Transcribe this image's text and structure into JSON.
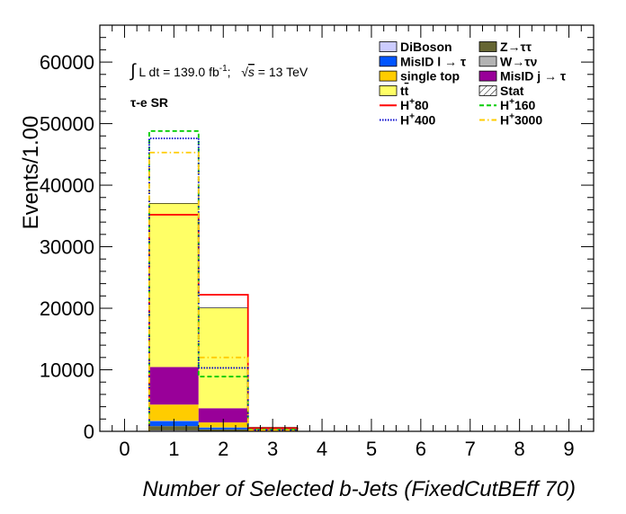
{
  "chart_data": {
    "type": "bar",
    "stacked": true,
    "x_categories": [
      "0",
      "1",
      "2",
      "3",
      "4",
      "5",
      "6",
      "7",
      "8",
      "9"
    ],
    "xlabel": "Number of Selected b-Jets (FixedCutBEff 70)",
    "ylabel": "Events/1.00",
    "ylim": [
      0,
      66000
    ],
    "xlim": [
      -0.5,
      9.5
    ],
    "y_ticks": [
      0,
      10000,
      20000,
      30000,
      40000,
      50000,
      60000
    ],
    "annotation_lumi": "∫ L dt = 139.0 fb⁻¹;   √s = 13 TeV",
    "lumi_parts": {
      "int": "∫",
      "text": " L dt = 139.0 fb",
      "sup": "-1",
      "sep": ";   ",
      "sqrt": "√",
      "s": "s",
      "energy": " = 13 TeV"
    },
    "annotation_region": "τ-e SR",
    "stack": [
      {
        "name": "DiBoson",
        "color": "#ccccff",
        "values": [
          0,
          150,
          60,
          5,
          0,
          0,
          0,
          0,
          0,
          0
        ]
      },
      {
        "name": "Z→ττ",
        "color": "#666633",
        "values": [
          0,
          700,
          250,
          30,
          0,
          0,
          0,
          0,
          0,
          0
        ]
      },
      {
        "name": "MisID l → τ",
        "color": "#0055ff",
        "values": [
          0,
          800,
          300,
          30,
          0,
          0,
          0,
          0,
          0,
          0
        ]
      },
      {
        "name": "W→τν",
        "color": "#b3b3b3",
        "values": [
          0,
          100,
          40,
          5,
          0,
          0,
          0,
          0,
          0,
          0
        ]
      },
      {
        "name": "single top",
        "color": "#ffcc00",
        "values": [
          0,
          2600,
          800,
          80,
          0,
          0,
          0,
          0,
          0,
          0
        ]
      },
      {
        "name": "MisID j → τ",
        "color": "#990099",
        "values": [
          0,
          6100,
          2300,
          200,
          0,
          0,
          0,
          0,
          0,
          0
        ]
      },
      {
        "name": "tt̄",
        "color": "#ffff66",
        "values": [
          0,
          26600,
          16300,
          300,
          0,
          0,
          0,
          0,
          0,
          0
        ]
      }
    ],
    "signals": [
      {
        "name": "H⁺80",
        "color": "#ff0000",
        "dash": "solid",
        "values": [
          0,
          35200,
          22200,
          500,
          0,
          0,
          0,
          0,
          0,
          0
        ]
      },
      {
        "name": "H⁺160",
        "color": "#00cc00",
        "dash": "dashed",
        "values": [
          0,
          48800,
          8900,
          300,
          0,
          0,
          0,
          0,
          0,
          0
        ]
      },
      {
        "name": "H⁺400",
        "color": "#0000cc",
        "dash": "dotted",
        "values": [
          0,
          47600,
          10300,
          200,
          0,
          0,
          0,
          0,
          0,
          0
        ]
      },
      {
        "name": "H⁺3000",
        "color": "#ffcc00",
        "dash": "dashdot",
        "values": [
          0,
          45300,
          12000,
          200,
          0,
          0,
          0,
          0,
          0,
          0
        ]
      }
    ],
    "stat_label": "Stat",
    "legend_placement": "top-right",
    "legend": {
      "left": [
        {
          "label": "DiBoson",
          "type": "box",
          "color": "#ccccff"
        },
        {
          "label": "MisID l → τ",
          "type": "box",
          "color": "#0055ff"
        },
        {
          "label": "single top",
          "type": "box",
          "color": "#ffcc00"
        },
        {
          "label": "tt̄",
          "type": "box",
          "color": "#ffff66",
          "sublabel": "t",
          "bar": true
        },
        {
          "label": "H⁺80",
          "type": "line",
          "color": "#ff0000",
          "dash": "solid",
          "base": "H",
          "sup": "+",
          "rest": "80"
        },
        {
          "label": "H⁺400",
          "type": "line",
          "color": "#0000cc",
          "dash": "dotted",
          "base": "H",
          "sup": "+",
          "rest": "400"
        }
      ],
      "right": [
        {
          "label": "Z→ττ",
          "type": "box",
          "color": "#666633"
        },
        {
          "label": "W→τν",
          "type": "box",
          "color": "#b3b3b3"
        },
        {
          "label": "MisID j → τ",
          "type": "box",
          "color": "#990099"
        },
        {
          "label": "Stat",
          "type": "hatch",
          "color": "#000000"
        },
        {
          "label": "H⁺160",
          "type": "line",
          "color": "#00cc00",
          "dash": "dashed",
          "base": "H",
          "sup": "+",
          "rest": "160"
        },
        {
          "label": "H⁺3000",
          "type": "line",
          "color": "#ffcc00",
          "dash": "dashdot",
          "base": "H",
          "sup": "+",
          "rest": "3000"
        }
      ]
    }
  }
}
